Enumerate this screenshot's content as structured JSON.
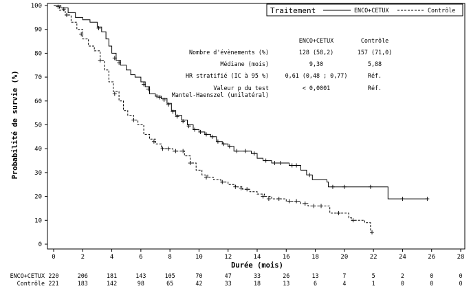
{
  "chart_data": {
    "type": "line",
    "xlabel": "Durée (mois)",
    "ylabel": "Probabilité de survie (%)",
    "xlim": [
      0,
      28
    ],
    "ylim": [
      0,
      100
    ],
    "x_ticks": [
      "0",
      "2",
      "4",
      "6",
      "8",
      "10",
      "12",
      "14",
      "16",
      "18",
      "20",
      "22",
      "24",
      "26",
      "28"
    ],
    "y_ticks": [
      "0",
      "10",
      "20",
      "30",
      "40",
      "50",
      "60",
      "70",
      "80",
      "90",
      "100"
    ],
    "legend": {
      "title": "Traitement",
      "position": "top-right",
      "entries": [
        {
          "label": "ENCO+CETUX",
          "style": "solid"
        },
        {
          "label": "Contrôle",
          "style": "dashed"
        }
      ]
    },
    "series": [
      {
        "name": "ENCO+CETUX",
        "style": "solid",
        "points": [
          [
            0,
            100
          ],
          [
            0.5,
            99
          ],
          [
            1,
            97
          ],
          [
            1.5,
            95
          ],
          [
            2,
            94
          ],
          [
            2.5,
            93
          ],
          [
            3,
            91
          ],
          [
            3.3,
            89
          ],
          [
            3.6,
            86
          ],
          [
            3.8,
            83
          ],
          [
            4,
            80
          ],
          [
            4.3,
            77
          ],
          [
            4.6,
            75
          ],
          [
            5,
            73
          ],
          [
            5.3,
            71
          ],
          [
            5.6,
            70
          ],
          [
            6,
            68
          ],
          [
            6.3,
            66
          ],
          [
            6.6,
            63
          ],
          [
            7,
            62
          ],
          [
            7.4,
            61
          ],
          [
            7.8,
            59
          ],
          [
            8.1,
            56
          ],
          [
            8.4,
            54
          ],
          [
            8.8,
            52
          ],
          [
            9.2,
            50
          ],
          [
            9.6,
            48
          ],
          [
            10,
            47
          ],
          [
            10.4,
            46
          ],
          [
            10.8,
            45
          ],
          [
            11.2,
            43
          ],
          [
            11.6,
            42
          ],
          [
            12,
            41
          ],
          [
            12.4,
            39
          ],
          [
            13,
            39
          ],
          [
            13.6,
            38
          ],
          [
            14,
            36
          ],
          [
            14.4,
            35
          ],
          [
            15,
            34
          ],
          [
            15.8,
            34
          ],
          [
            16.2,
            33
          ],
          [
            17,
            31
          ],
          [
            17.4,
            29
          ],
          [
            17.8,
            27
          ],
          [
            18.8,
            26
          ],
          [
            18.9,
            24
          ],
          [
            20,
            24
          ],
          [
            21,
            24
          ],
          [
            22,
            24
          ],
          [
            22.9,
            24
          ],
          [
            23,
            19
          ],
          [
            24,
            19
          ],
          [
            25.7,
            19
          ]
        ],
        "censors": [
          [
            0.3,
            99.5
          ],
          [
            0.7,
            98.5
          ],
          [
            3.1,
            90.5
          ],
          [
            4.2,
            78
          ],
          [
            4.5,
            76
          ],
          [
            6.2,
            67
          ],
          [
            6.5,
            65
          ],
          [
            7.1,
            62
          ],
          [
            7.3,
            61.5
          ],
          [
            7.6,
            60.5
          ],
          [
            7.9,
            58.5
          ],
          [
            8.2,
            55.5
          ],
          [
            8.5,
            53.5
          ],
          [
            8.9,
            51.5
          ],
          [
            9.3,
            49.5
          ],
          [
            9.7,
            48
          ],
          [
            10.1,
            47
          ],
          [
            10.5,
            46
          ],
          [
            10.9,
            45
          ],
          [
            11.3,
            43
          ],
          [
            11.7,
            42
          ],
          [
            12.1,
            41
          ],
          [
            12.6,
            39
          ],
          [
            13.2,
            39
          ],
          [
            13.8,
            38
          ],
          [
            14.6,
            35
          ],
          [
            15.2,
            34
          ],
          [
            15.6,
            34
          ],
          [
            16.4,
            33
          ],
          [
            16.7,
            33
          ],
          [
            17.6,
            29
          ],
          [
            19.2,
            24
          ],
          [
            20,
            24
          ],
          [
            21.8,
            24
          ],
          [
            24,
            19
          ],
          [
            25.7,
            19
          ]
        ]
      },
      {
        "name": "Contrôle",
        "style": "dashed",
        "points": [
          [
            0,
            100
          ],
          [
            0.4,
            98
          ],
          [
            0.8,
            96
          ],
          [
            1.2,
            93
          ],
          [
            1.6,
            90
          ],
          [
            2,
            86
          ],
          [
            2.4,
            83
          ],
          [
            2.8,
            81
          ],
          [
            3.2,
            77
          ],
          [
            3.5,
            73
          ],
          [
            3.8,
            68
          ],
          [
            4.1,
            64
          ],
          [
            4.5,
            60
          ],
          [
            4.8,
            56
          ],
          [
            5.1,
            54
          ],
          [
            5.5,
            52
          ],
          [
            5.8,
            50
          ],
          [
            6.2,
            46
          ],
          [
            6.6,
            44
          ],
          [
            7,
            42
          ],
          [
            7.4,
            40
          ],
          [
            7.8,
            40
          ],
          [
            8.2,
            39
          ],
          [
            8.6,
            39
          ],
          [
            9,
            37
          ],
          [
            9.4,
            34
          ],
          [
            9.8,
            31
          ],
          [
            10.2,
            29
          ],
          [
            10.6,
            28
          ],
          [
            11,
            27
          ],
          [
            11.5,
            26
          ],
          [
            12,
            25
          ],
          [
            12.5,
            24
          ],
          [
            13,
            23
          ],
          [
            13.5,
            22
          ],
          [
            14,
            21
          ],
          [
            14.5,
            20
          ],
          [
            15,
            19
          ],
          [
            15.5,
            19
          ],
          [
            16,
            18
          ],
          [
            16.5,
            18
          ],
          [
            17,
            17
          ],
          [
            17.5,
            16
          ],
          [
            18,
            16
          ],
          [
            18.5,
            16
          ],
          [
            19,
            13
          ],
          [
            19.5,
            13
          ],
          [
            20,
            13
          ],
          [
            20.3,
            11
          ],
          [
            20.5,
            10
          ],
          [
            21,
            10
          ],
          [
            21.4,
            9
          ],
          [
            21.8,
            5
          ],
          [
            22,
            5
          ]
        ],
        "censors": [
          [
            0.9,
            96
          ],
          [
            1.9,
            88
          ],
          [
            3.2,
            77
          ],
          [
            4.2,
            63
          ],
          [
            5.5,
            52
          ],
          [
            6.9,
            43
          ],
          [
            7.5,
            40
          ],
          [
            7.9,
            40
          ],
          [
            8.4,
            39
          ],
          [
            8.9,
            39
          ],
          [
            9.4,
            34
          ],
          [
            10.5,
            28
          ],
          [
            11.6,
            26
          ],
          [
            12.5,
            24
          ],
          [
            12.9,
            23.5
          ],
          [
            13.3,
            23
          ],
          [
            14.4,
            20
          ],
          [
            14.8,
            19
          ],
          [
            15.5,
            19
          ],
          [
            16.2,
            18
          ],
          [
            16.7,
            18
          ],
          [
            17.3,
            17
          ],
          [
            17.9,
            16
          ],
          [
            18.4,
            16
          ],
          [
            19.6,
            13
          ],
          [
            20.6,
            10
          ],
          [
            21.9,
            5
          ]
        ]
      }
    ],
    "stats_table": {
      "col_headers": [
        "ENCO+CETUX",
        "Contrôle"
      ],
      "rows": [
        {
          "label": "Nombre d'évènements (%)",
          "values": [
            "128 (58,2)",
            "157 (71,0)"
          ]
        },
        {
          "label": "Médiane (mois)",
          "values": [
            "9,30",
            "5,88"
          ]
        },
        {
          "label": "HR stratifié (IC à 95 %)",
          "values": [
            "0,61 (0,48 ; 0,77)",
            "Réf."
          ]
        },
        {
          "label": "Valeur p du test",
          "label2": "Mantel-Haenszel (unilatéral)",
          "values": [
            "< 0,0001",
            "Réf."
          ]
        }
      ]
    },
    "at_risk": {
      "x": [
        0,
        2,
        4,
        6,
        8,
        10,
        12,
        14,
        16,
        18,
        20,
        22,
        24,
        26,
        28
      ],
      "rows": [
        {
          "label": "ENCO+CETUX",
          "values": [
            "220",
            "206",
            "181",
            "143",
            "105",
            "70",
            "47",
            "33",
            "26",
            "13",
            "7",
            "5",
            "2",
            "0",
            "0"
          ]
        },
        {
          "label": "Contrôle",
          "values": [
            "221",
            "183",
            "142",
            "98",
            "65",
            "42",
            "33",
            "18",
            "13",
            "6",
            "4",
            "1",
            "0",
            "0",
            "0"
          ]
        }
      ]
    }
  }
}
